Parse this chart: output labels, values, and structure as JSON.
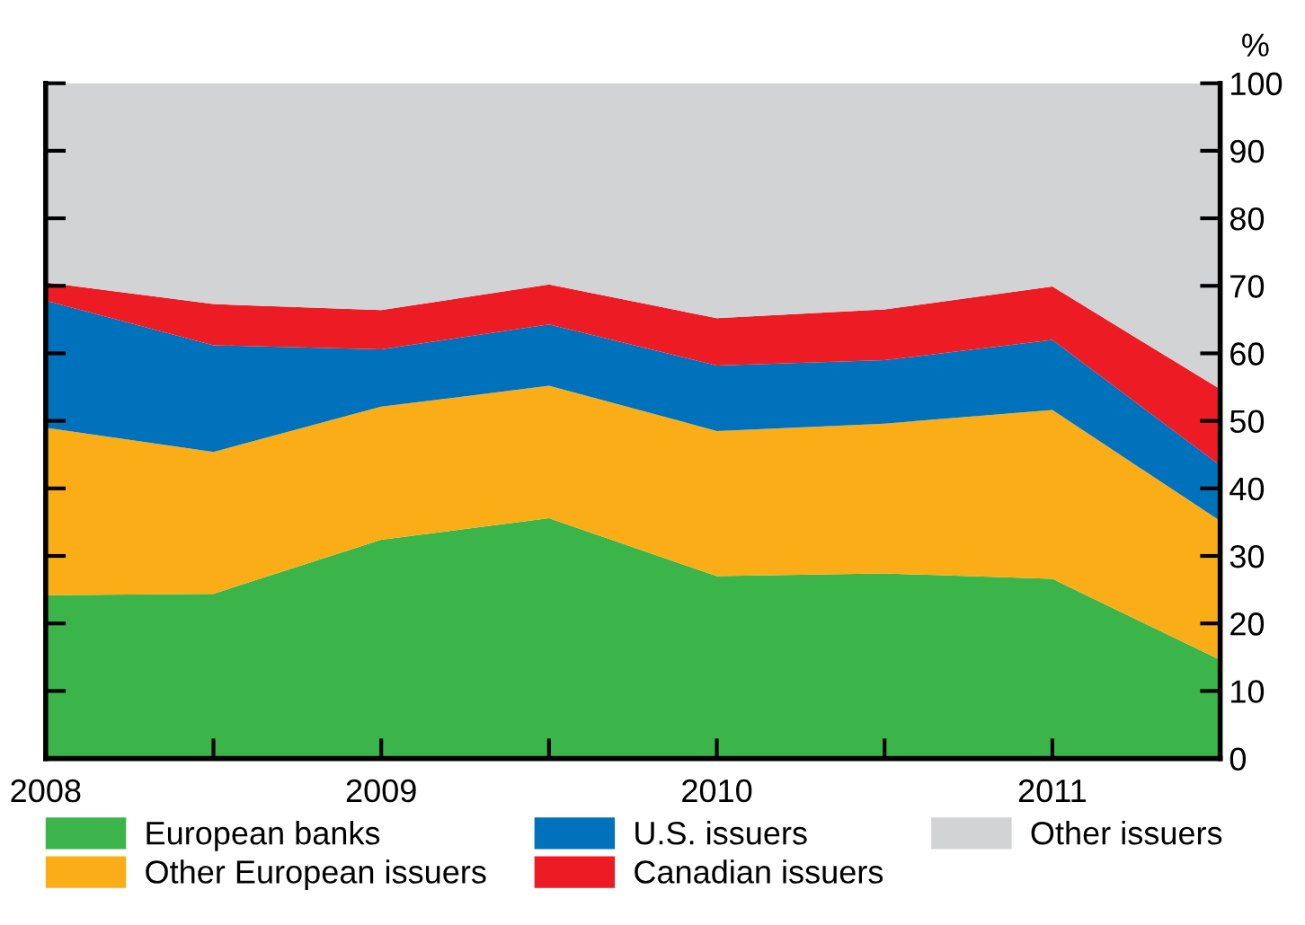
{
  "chart_data": {
    "type": "area",
    "stacked": true,
    "ylabel": "%",
    "x": [
      2008,
      2008.5,
      2009,
      2009.5,
      2010,
      2010.5,
      2011,
      2011.5
    ],
    "series": [
      {
        "name": "European banks",
        "color": "#3bb54a",
        "values": [
          24.2,
          24.4,
          32.4,
          35.6,
          27.0,
          27.4,
          26.6,
          14.6
        ]
      },
      {
        "name": "Other European issuers",
        "color": "#fbad18",
        "values": [
          24.8,
          21.0,
          19.7,
          19.6,
          21.5,
          22.2,
          25.0,
          20.6
        ]
      },
      {
        "name": "U.S. issuers",
        "color": "#0072bb",
        "values": [
          18.8,
          15.8,
          8.5,
          9.1,
          9.7,
          9.4,
          10.4,
          8.2
        ]
      },
      {
        "name": "Canadian issuers",
        "color": "#ed1c24",
        "values": [
          2.7,
          6.1,
          5.8,
          5.9,
          7.0,
          7.5,
          7.9,
          11.3
        ]
      },
      {
        "name": "Other issuers",
        "color": "#d1d3d4",
        "values": [
          29.5,
          32.7,
          33.6,
          29.8,
          34.8,
          33.5,
          30.1,
          45.3
        ]
      }
    ],
    "xlim": [
      2008,
      2011.5
    ],
    "xticks": [
      2008,
      {
        "value": 2008.5,
        "label": null
      },
      2009,
      {
        "value": 2009.5,
        "label": null
      },
      2010,
      {
        "value": 2010.5,
        "label": null
      },
      2011,
      {
        "value": 2011.5,
        "label": null
      }
    ],
    "ylim": [
      0,
      100
    ],
    "yticks": [
      0,
      10,
      20,
      30,
      40,
      50,
      60,
      70,
      80,
      90,
      100
    ],
    "grid": false,
    "legend": "bottom"
  }
}
